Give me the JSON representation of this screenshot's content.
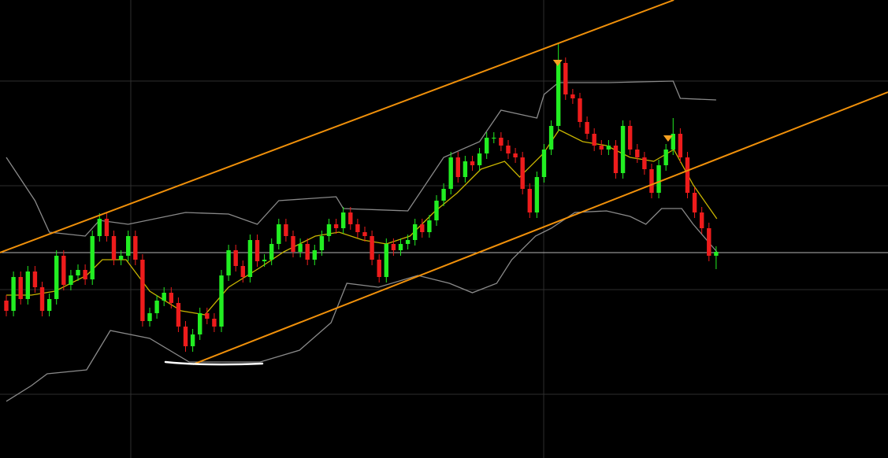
{
  "chart_data": {
    "type": "candlestick",
    "xlim": [
      -0.88,
      122.97
    ],
    "ylim": [
      0,
      582
    ],
    "xticks": [
      17.36,
      74.95
    ],
    "yticks": [
      81,
      214,
      346,
      479
    ],
    "grid": true,
    "grid_color": "#2e2e2e",
    "up_color": "#22ee22",
    "down_color": "#ee1c1c",
    "open": [
      200,
      187,
      230,
      202,
      237,
      217,
      187,
      202,
      257,
      220,
      232,
      239,
      227,
      282,
      304,
      282,
      252,
      257,
      282,
      252,
      174,
      184,
      200,
      210,
      197,
      167,
      142,
      157,
      184,
      177,
      167,
      232,
      264,
      244,
      230,
      277,
      250,
      252,
      272,
      297,
      282,
      262,
      272,
      252,
      264,
      282,
      297,
      292,
      312,
      297,
      287,
      282,
      252,
      230,
      272,
      264,
      272,
      277,
      297,
      287,
      302,
      327,
      342,
      382,
      357,
      377,
      372,
      387,
      407,
      407,
      397,
      387,
      382,
      342,
      312,
      357,
      392,
      422,
      502,
      462,
      457,
      427,
      412,
      397,
      392,
      397,
      362,
      422,
      392,
      382,
      367,
      337,
      372,
      392,
      412,
      382,
      337,
      312,
      292,
      257
    ],
    "high": [
      207,
      237,
      237,
      244,
      244,
      224,
      209,
      264,
      264,
      239,
      246,
      246,
      289,
      311,
      311,
      289,
      264,
      289,
      289,
      259,
      191,
      207,
      217,
      217,
      204,
      174,
      164,
      191,
      191,
      184,
      239,
      271,
      271,
      251,
      284,
      284,
      259,
      279,
      304,
      304,
      289,
      279,
      279,
      271,
      289,
      304,
      304,
      319,
      319,
      304,
      294,
      289,
      259,
      279,
      279,
      279,
      284,
      304,
      304,
      309,
      334,
      349,
      389,
      389,
      384,
      384,
      394,
      414,
      414,
      414,
      404,
      394,
      389,
      349,
      364,
      399,
      429,
      527,
      509,
      469,
      464,
      434,
      419,
      404,
      404,
      404,
      429,
      429,
      399,
      389,
      374,
      379,
      399,
      432,
      419,
      389,
      344,
      319,
      299,
      269
    ],
    "low": [
      180,
      180,
      195,
      195,
      210,
      180,
      180,
      195,
      213,
      213,
      225,
      220,
      220,
      275,
      275,
      245,
      245,
      250,
      245,
      167,
      167,
      177,
      193,
      190,
      160,
      135,
      135,
      150,
      170,
      160,
      160,
      225,
      237,
      223,
      223,
      243,
      243,
      245,
      265,
      275,
      255,
      255,
      245,
      245,
      257,
      275,
      285,
      285,
      290,
      280,
      275,
      245,
      223,
      223,
      257,
      257,
      265,
      270,
      280,
      280,
      295,
      320,
      335,
      350,
      350,
      365,
      365,
      380,
      400,
      390,
      380,
      375,
      335,
      305,
      305,
      350,
      385,
      415,
      455,
      450,
      420,
      405,
      390,
      385,
      385,
      355,
      355,
      385,
      375,
      360,
      330,
      330,
      365,
      385,
      375,
      330,
      305,
      285,
      250,
      240
    ],
    "close": [
      187,
      230,
      202,
      237,
      217,
      187,
      202,
      257,
      220,
      232,
      239,
      227,
      282,
      304,
      282,
      252,
      257,
      282,
      252,
      174,
      184,
      200,
      210,
      197,
      167,
      142,
      157,
      184,
      177,
      167,
      232,
      264,
      244,
      230,
      277,
      250,
      252,
      272,
      297,
      282,
      262,
      272,
      252,
      264,
      282,
      297,
      292,
      312,
      297,
      287,
      282,
      252,
      230,
      272,
      264,
      272,
      277,
      297,
      287,
      302,
      327,
      342,
      382,
      357,
      377,
      372,
      387,
      407,
      407,
      397,
      387,
      382,
      342,
      312,
      357,
      392,
      422,
      502,
      462,
      457,
      427,
      412,
      397,
      392,
      397,
      362,
      422,
      392,
      382,
      367,
      337,
      372,
      392,
      412,
      382,
      337,
      312,
      292,
      257,
      262
    ],
    "lines": [
      {
        "color": "#8a8a8a",
        "x": [
          0,
          4,
          6,
          11,
          13,
          17,
          25,
          31,
          35,
          38,
          46,
          47,
          56,
          61,
          66,
          69,
          74,
          75,
          77,
          84,
          93,
          94,
          99
        ],
        "values": [
          382,
          327,
          287,
          282,
          302,
          297,
          312,
          310,
          297,
          327,
          332,
          317,
          314,
          382,
          402,
          442,
          432,
          462,
          477,
          477,
          479,
          457,
          455
        ]
      },
      {
        "color": "#8a8a8a",
        "x": [
          0,
          3.5,
          5.7,
          11.2,
          14.5,
          20,
          25.5,
          31,
          35.4,
          40.9,
          45.3,
          47.5,
          51.9,
          57.4,
          61.8,
          65,
          68.4,
          70.5,
          73.8,
          76,
          79.3,
          83.7,
          87,
          89.2,
          91.4,
          94.2,
          95.8,
          99.1
        ],
        "values": [
          72,
          92,
          107,
          112,
          162,
          152,
          122,
          122,
          122,
          137,
          172,
          222,
          217,
          232,
          222,
          210,
          222,
          252,
          282,
          292,
          312,
          314,
          307,
          297,
          317,
          317,
          297,
          262
        ]
      },
      {
        "color": "#c8b400",
        "x": [
          0,
          3.5,
          6.8,
          11.2,
          13.4,
          16.7,
          20,
          24.4,
          27.7,
          31,
          35.4,
          38.7,
          43.1,
          46.4,
          49.7,
          53,
          56.3,
          59.6,
          62.9,
          66.2,
          69.5,
          71.6,
          74.9,
          77.1,
          80.4,
          83.7,
          87,
          90.3,
          93.1,
          95.8,
          99.1
        ],
        "values": [
          207,
          207,
          212,
          232,
          252,
          252,
          212,
          187,
          182,
          217,
          242,
          262,
          282,
          287,
          277,
          272,
          282,
          312,
          337,
          367,
          377,
          357,
          387,
          417,
          402,
          397,
          382,
          377,
          392,
          347,
          304
        ]
      }
    ],
    "trendlines": [
      {
        "color": "#f0900a",
        "x": [
          -0.88,
          93.1
        ],
        "values": [
          261,
          582
        ]
      },
      {
        "color": "#f0900a",
        "x": [
          26.04,
          122.97
        ],
        "values": [
          119,
          465
        ]
      }
    ],
    "hlines": [
      {
        "value": 261,
        "color": "#b4b4b4"
      }
    ],
    "markers": {
      "color": "#f5a020",
      "x": [
        76.9,
        92.3
      ],
      "values": [
        502,
        406
      ]
    }
  }
}
